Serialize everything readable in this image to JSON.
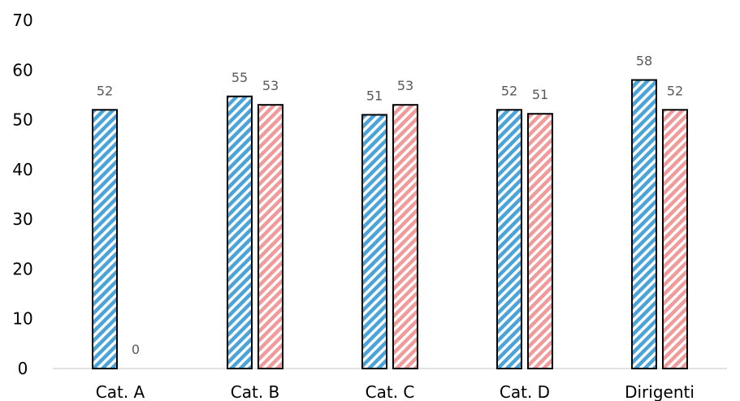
{
  "chart_data": {
    "type": "bar",
    "categories": [
      "Cat. A",
      "Cat. B",
      "Cat. C",
      "Cat. D",
      "Dirigenti"
    ],
    "series": [
      {
        "values": [
          52,
          54.7,
          51,
          52,
          58
        ],
        "labels": [
          "52",
          "55",
          "51",
          "52",
          "58"
        ],
        "color": "#4aa3d9",
        "pattern": "diagonal-stripes"
      },
      {
        "values": [
          0,
          53,
          53,
          51.2,
          52
        ],
        "labels": [
          "0",
          "53",
          "53",
          "51",
          "52"
        ],
        "color": "#f19a9a",
        "pattern": "diagonal-stripes"
      }
    ],
    "yticks": [
      "0",
      "10",
      "20",
      "30",
      "40",
      "50",
      "60",
      "70"
    ],
    "ylim": [
      0,
      70
    ],
    "grid": false,
    "legend": "none"
  }
}
